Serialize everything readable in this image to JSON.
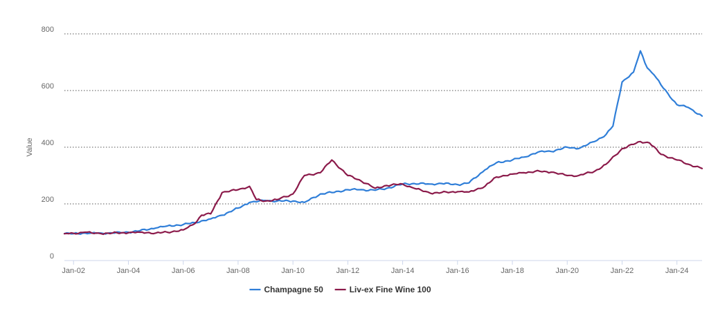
{
  "chart_data": {
    "type": "line",
    "title": "",
    "xlabel": "",
    "ylabel": "Value",
    "ylim": [
      0,
      800
    ],
    "xlim": [
      "2001-09",
      "2024-12"
    ],
    "y_ticks": [
      "0",
      "200",
      "400",
      "600",
      "800"
    ],
    "x_ticks": [
      {
        "label": "Jan-02",
        "date": "2002-01"
      },
      {
        "label": "Jan-04",
        "date": "2004-01"
      },
      {
        "label": "Jan-06",
        "date": "2006-01"
      },
      {
        "label": "Jan-08",
        "date": "2008-01"
      },
      {
        "label": "Jan-10",
        "date": "2010-01"
      },
      {
        "label": "Jan-12",
        "date": "2012-01"
      },
      {
        "label": "Jan-14",
        "date": "2014-01"
      },
      {
        "label": "Jan-16",
        "date": "2016-01"
      },
      {
        "label": "Jan-18",
        "date": "2018-01"
      },
      {
        "label": "Jan-20",
        "date": "2020-01"
      },
      {
        "label": "Jan-22",
        "date": "2022-01"
      },
      {
        "label": "Jan-24",
        "date": "2024-01"
      }
    ],
    "grid": true,
    "legend_position": "bottom-center",
    "series": [
      {
        "name": "Champagne 50",
        "color": "#2f7ed8",
        "x": [
          "2001-09",
          "2002-01",
          "2002-06",
          "2002-09",
          "2003-01",
          "2003-06",
          "2004-01",
          "2004-06",
          "2005-01",
          "2005-06",
          "2006-01",
          "2006-06",
          "2007-01",
          "2007-06",
          "2008-01",
          "2008-06",
          "2009-01",
          "2009-06",
          "2010-01",
          "2010-06",
          "2011-01",
          "2011-06",
          "2012-01",
          "2012-06",
          "2013-01",
          "2013-06",
          "2014-01",
          "2014-06",
          "2015-01",
          "2015-06",
          "2016-01",
          "2016-06",
          "2017-01",
          "2017-06",
          "2018-01",
          "2018-06",
          "2019-01",
          "2019-06",
          "2020-01",
          "2020-06",
          "2021-01",
          "2021-06",
          "2021-09",
          "2022-01",
          "2022-06",
          "2022-09",
          "2022-12",
          "2023-03",
          "2023-06",
          "2023-09",
          "2024-01",
          "2024-06",
          "2024-12"
        ],
        "values": [
          95,
          95,
          97,
          97,
          97,
          97,
          100,
          105,
          115,
          122,
          127,
          134,
          147,
          160,
          185,
          205,
          212,
          210,
          210,
          205,
          235,
          240,
          250,
          250,
          248,
          255,
          270,
          272,
          270,
          272,
          268,
          274,
          320,
          345,
          355,
          365,
          385,
          385,
          400,
          395,
          420,
          445,
          475,
          630,
          665,
          740,
          680,
          655,
          620,
          590,
          550,
          540,
          510
        ]
      },
      {
        "name": "Liv-ex Fine Wine 100",
        "color": "#8b1a4a",
        "x": [
          "2001-09",
          "2002-01",
          "2002-06",
          "2002-09",
          "2003-01",
          "2003-06",
          "2004-01",
          "2004-06",
          "2005-01",
          "2005-06",
          "2006-01",
          "2006-06",
          "2006-09",
          "2007-01",
          "2007-06",
          "2008-01",
          "2008-06",
          "2008-09",
          "2009-01",
          "2009-06",
          "2010-01",
          "2010-06",
          "2011-01",
          "2011-06",
          "2012-01",
          "2012-06",
          "2013-01",
          "2013-06",
          "2014-01",
          "2014-06",
          "2015-01",
          "2015-06",
          "2016-01",
          "2016-06",
          "2017-01",
          "2017-06",
          "2018-01",
          "2018-06",
          "2019-01",
          "2019-06",
          "2020-01",
          "2020-06",
          "2021-01",
          "2021-06",
          "2022-01",
          "2022-06",
          "2022-09",
          "2023-01",
          "2023-06",
          "2024-01",
          "2024-06",
          "2024-12"
        ],
        "values": [
          95,
          96,
          100,
          97,
          95,
          97,
          98,
          100,
          97,
          100,
          108,
          130,
          160,
          165,
          240,
          250,
          262,
          215,
          210,
          215,
          235,
          300,
          310,
          355,
          300,
          285,
          255,
          265,
          270,
          255,
          238,
          240,
          243,
          242,
          262,
          295,
          305,
          310,
          315,
          312,
          300,
          300,
          315,
          340,
          395,
          410,
          420,
          415,
          375,
          355,
          340,
          325
        ]
      }
    ]
  }
}
